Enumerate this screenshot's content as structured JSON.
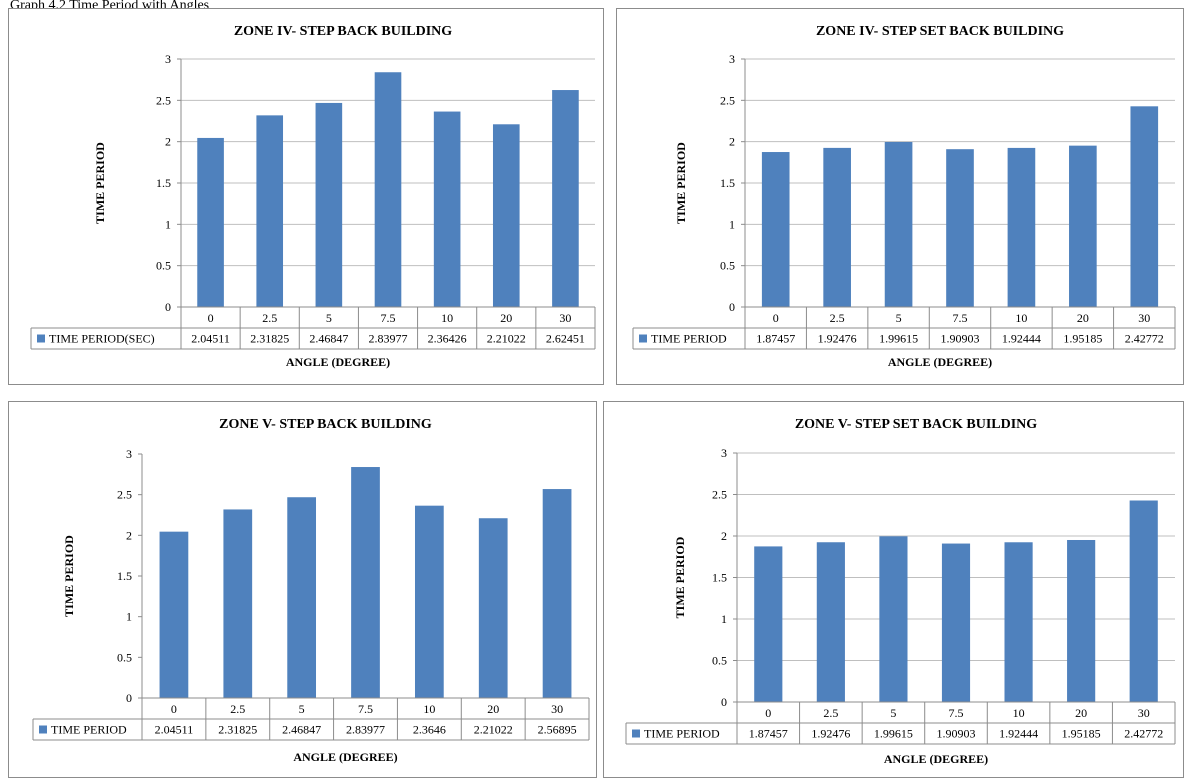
{
  "caption": "Graph 4.2 Time Period with Angles",
  "colors": {
    "bar": "#4f81bd",
    "grid": "#bfbfbf",
    "axis": "#8c8c8c"
  },
  "chart_data": [
    {
      "type": "bar",
      "title": "ZONE IV- STEP BACK BUILDING",
      "xlabel": "ANGLE (DEGREE)",
      "ylabel": "TIME PERIOD",
      "categories": [
        "0",
        "2.5",
        "5",
        "7.5",
        "10",
        "20",
        "30"
      ],
      "ylim": [
        0,
        3
      ],
      "yticks": [
        "0",
        "0.5",
        "1",
        "1.5",
        "2",
        "2.5",
        "3"
      ],
      "grid": true,
      "legend": "data-table",
      "series": [
        {
          "name": "TIME PERIOD(SEC)",
          "values": [
            2.04511,
            2.31825,
            2.46847,
            2.83977,
            2.36426,
            2.21022,
            2.62451
          ],
          "labels": [
            "2.04511",
            "2.31825",
            "2.46847",
            "2.83977",
            "2.36426",
            "2.21022",
            "2.62451"
          ]
        }
      ]
    },
    {
      "type": "bar",
      "title": "ZONE IV- STEP SET BACK BUILDING",
      "xlabel": "ANGLE (DEGREE)",
      "ylabel": "TIME PERIOD",
      "categories": [
        "0",
        "2.5",
        "5",
        "7.5",
        "10",
        "20",
        "30"
      ],
      "ylim": [
        0,
        3
      ],
      "yticks": [
        "0",
        "0.5",
        "1",
        "1.5",
        "2",
        "2.5",
        "3"
      ],
      "grid": true,
      "legend": "data-table",
      "series": [
        {
          "name": "TIME PERIOD",
          "values": [
            1.87457,
            1.92476,
            1.99615,
            1.90903,
            1.92444,
            1.95185,
            2.42772
          ],
          "labels": [
            "1.87457",
            "1.92476",
            "1.99615",
            "1.90903",
            "1.92444",
            "1.95185",
            "2.42772"
          ]
        }
      ]
    },
    {
      "type": "bar",
      "title": "ZONE V- STEP BACK BUILDING",
      "xlabel": "ANGLE (DEGREE)",
      "ylabel": "TIME PERIOD",
      "categories": [
        "0",
        "2.5",
        "5",
        "7.5",
        "10",
        "20",
        "30"
      ],
      "ylim": [
        0,
        3
      ],
      "yticks": [
        "0",
        "0.5",
        "1",
        "1.5",
        "2",
        "2.5",
        "3"
      ],
      "grid": false,
      "legend": "data-table",
      "series": [
        {
          "name": "TIME PERIOD",
          "values": [
            2.04511,
            2.31825,
            2.46847,
            2.83977,
            2.3646,
            2.21022,
            2.56895
          ],
          "labels": [
            "2.04511",
            "2.31825",
            "2.46847",
            "2.83977",
            "2.3646",
            "2.21022",
            "2.56895"
          ]
        }
      ]
    },
    {
      "type": "bar",
      "title": "ZONE V- STEP SET BACK BUILDING",
      "xlabel": "ANGLE (DEGREE)",
      "ylabel": "TIME PERIOD",
      "categories": [
        "0",
        "2.5",
        "5",
        "7.5",
        "10",
        "20",
        "30"
      ],
      "ylim": [
        0,
        3
      ],
      "yticks": [
        "0",
        "0.5",
        "1",
        "1.5",
        "2",
        "2.5",
        "3"
      ],
      "grid": true,
      "legend": "data-table",
      "series": [
        {
          "name": "TIME PERIOD",
          "values": [
            1.87457,
            1.92476,
            1.99615,
            1.90903,
            1.92444,
            1.95185,
            2.42772
          ],
          "labels": [
            "1.87457",
            "1.92476",
            "1.99615",
            "1.90903",
            "1.92444",
            "1.95185",
            "2.42772"
          ]
        }
      ]
    }
  ]
}
